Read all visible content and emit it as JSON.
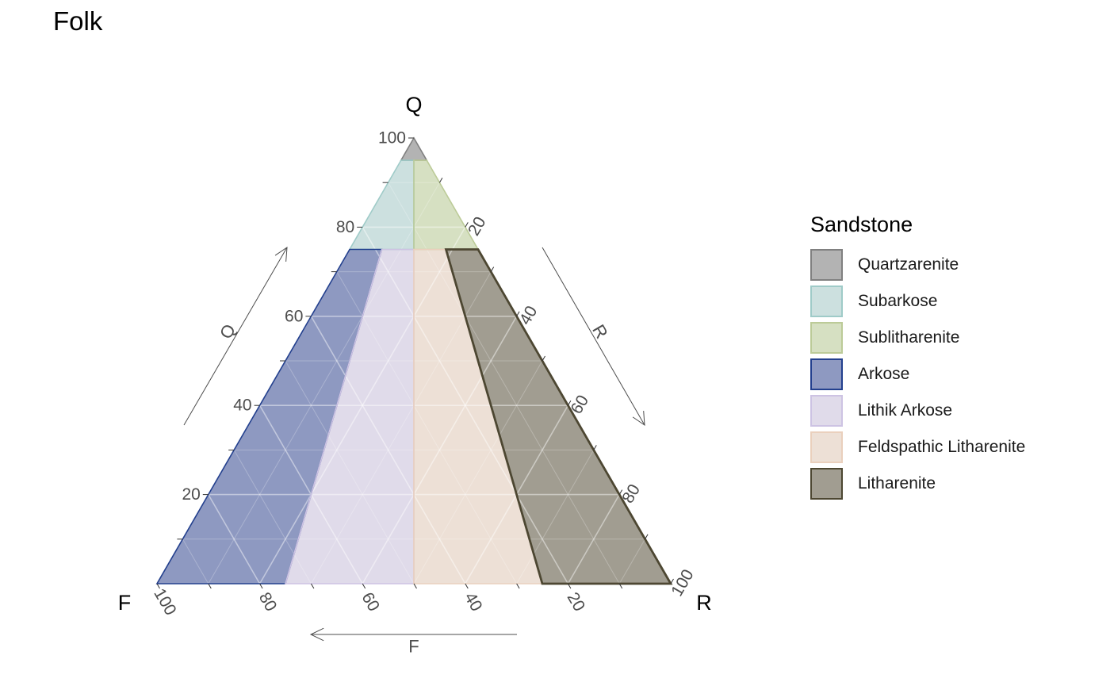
{
  "chart_data": {
    "type": "ternary",
    "title": "Folk",
    "vertices": {
      "top": "Q",
      "left": "F",
      "right": "R"
    },
    "axis_titles": {
      "Q": "Q",
      "F": "F",
      "R": "R"
    },
    "ticks": [
      20,
      40,
      60,
      80,
      100
    ],
    "tick_labels": [
      "20",
      "40",
      "60",
      "80",
      "100"
    ],
    "legend": {
      "title": "Sandstone",
      "placement": "right",
      "entries": [
        {
          "name": "Quartzarenite",
          "fill": "#b3b3b3",
          "stroke": "#808080"
        },
        {
          "name": "Subarkose",
          "fill": "#cce0df",
          "stroke": "#9fcbc8"
        },
        {
          "name": "Sublitharenite",
          "fill": "#d6e0c2",
          "stroke": "#bccb98"
        },
        {
          "name": "Arkose",
          "fill": "#8e99c1",
          "stroke": "#23408e"
        },
        {
          "name": "Lithik Arkose",
          "fill": "#e0dbea",
          "stroke": "#cdc3e3"
        },
        {
          "name": "Feldspathic Litharenite",
          "fill": "#ede0d6",
          "stroke": "#ead0bd"
        },
        {
          "name": "Litharenite",
          "fill": "#a19d91",
          "stroke": "#4d4732"
        }
      ]
    },
    "regions": [
      {
        "name": "Quartzarenite",
        "points": [
          [
            100,
            0,
            0
          ],
          [
            95,
            5,
            0
          ],
          [
            95,
            0,
            5
          ]
        ]
      },
      {
        "name": "Subarkose",
        "points": [
          [
            95,
            5,
            0
          ],
          [
            75,
            25,
            0
          ],
          [
            75,
            12.5,
            12.5
          ],
          [
            95,
            2.5,
            2.5
          ]
        ]
      },
      {
        "name": "Sublitharenite",
        "points": [
          [
            95,
            2.5,
            2.5
          ],
          [
            75,
            12.5,
            12.5
          ],
          [
            75,
            0,
            25
          ],
          [
            95,
            0,
            5
          ]
        ]
      },
      {
        "name": "Arkose",
        "points": [
          [
            75,
            25,
            0
          ],
          [
            0,
            100,
            0
          ],
          [
            0,
            75,
            25
          ],
          [
            75,
            18.75,
            6.25
          ]
        ]
      },
      {
        "name": "Lithik Arkose",
        "points": [
          [
            75,
            18.75,
            6.25
          ],
          [
            0,
            75,
            25
          ],
          [
            0,
            50,
            50
          ],
          [
            75,
            12.5,
            12.5
          ]
        ]
      },
      {
        "name": "Feldspathic Litharenite",
        "points": [
          [
            75,
            12.5,
            12.5
          ],
          [
            0,
            50,
            50
          ],
          [
            0,
            25,
            75
          ],
          [
            75,
            6.25,
            18.75
          ]
        ]
      },
      {
        "name": "Litharenite",
        "points": [
          [
            75,
            6.25,
            18.75
          ],
          [
            0,
            25,
            75
          ],
          [
            0,
            0,
            100
          ],
          [
            75,
            0,
            25
          ]
        ]
      }
    ]
  }
}
